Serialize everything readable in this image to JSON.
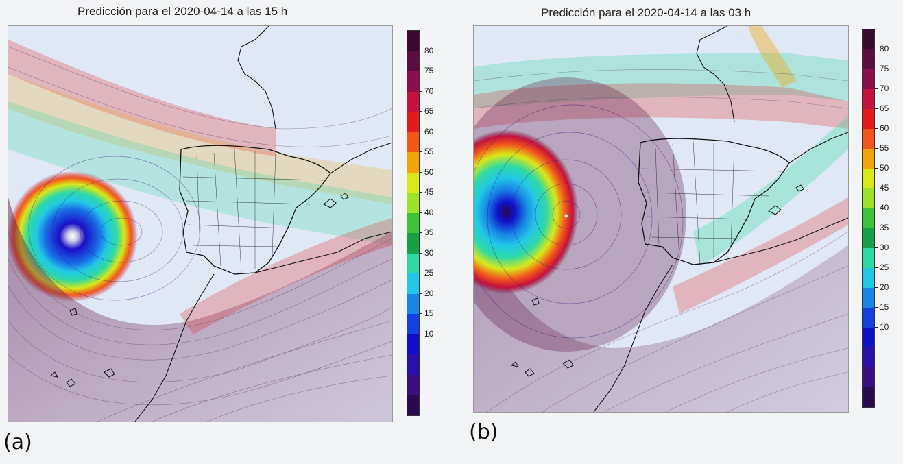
{
  "panels": [
    {
      "label": "(a)",
      "title": "Predicción para el 2020-04-14 a las 15 h",
      "low_center": "northwest-atlantic-off-galicia",
      "colorbar_ticks": [
        "80",
        "75",
        "70",
        "65",
        "60",
        "55",
        "50",
        "45",
        "40",
        "35",
        "30",
        "25",
        "20",
        "15",
        "10"
      ]
    },
    {
      "label": "(b)",
      "title": "Predicción para el 2020-04-14 a las 03 h",
      "low_center": "west-of-portugal",
      "colorbar_ticks": [
        "80",
        "75",
        "70",
        "65",
        "60",
        "55",
        "50",
        "45",
        "40",
        "35",
        "30",
        "25",
        "20",
        "15",
        "10"
      ]
    }
  ],
  "colorbar_colors": [
    "#3a0a2e",
    "#5a0d3e",
    "#8a0f4a",
    "#c4123e",
    "#e31b1b",
    "#f2561b",
    "#f3a40a",
    "#d9e81a",
    "#9ee22a",
    "#3cc43a",
    "#17a24a",
    "#2fd9a3",
    "#22c9e6",
    "#1a86e6",
    "#1440e0",
    "#1010c8",
    "#2a0fa8",
    "#3a0e80",
    "#2a0a4e"
  ],
  "colors": {
    "background": "#f3f4f6",
    "coast": "#111111",
    "streamline_dark": "#5a3a5a"
  }
}
